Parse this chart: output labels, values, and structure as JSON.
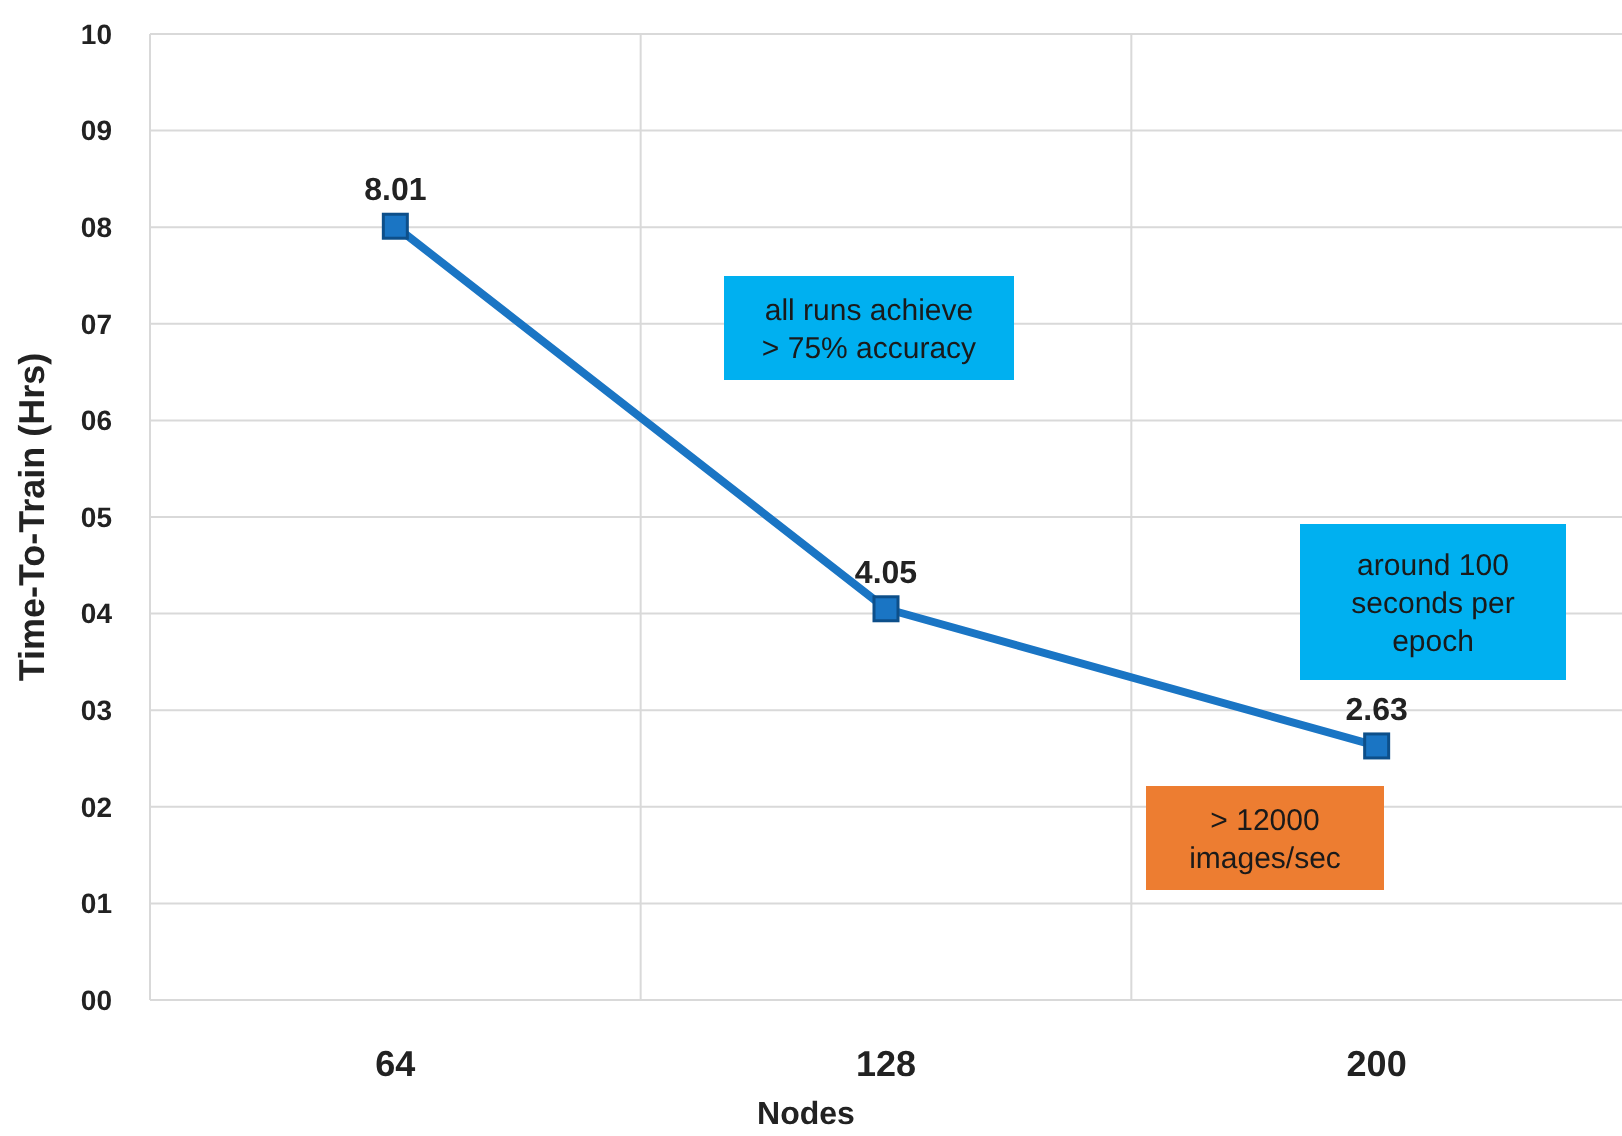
{
  "chart_data": {
    "type": "line",
    "xlabel": "Nodes",
    "ylabel": "Time-To-Train (Hrs)",
    "categories": [
      "64",
      "128",
      "200"
    ],
    "series": [
      {
        "color": "#1a75c4",
        "values": [
          8.01,
          4.05,
          2.63
        ]
      }
    ],
    "ylim": [
      0,
      10
    ],
    "yticks": [
      {
        "value": 0,
        "label": "00"
      },
      {
        "value": 1,
        "label": "01"
      },
      {
        "value": 2,
        "label": "02"
      },
      {
        "value": 3,
        "label": "03"
      },
      {
        "value": 4,
        "label": "04"
      },
      {
        "value": 5,
        "label": "05"
      },
      {
        "value": 6,
        "label": "06"
      },
      {
        "value": 7,
        "label": "07"
      },
      {
        "value": 8,
        "label": "08"
      },
      {
        "value": 9,
        "label": "09"
      },
      {
        "value": 10,
        "label": "10"
      }
    ],
    "grid": true,
    "marker": "square",
    "line_style": "solid",
    "data_labels": true,
    "annotations": [
      "all runs achieve\n> 75% accuracy",
      "around 100\nseconds per\nepoch",
      "> 12000\nimages/sec"
    ]
  }
}
